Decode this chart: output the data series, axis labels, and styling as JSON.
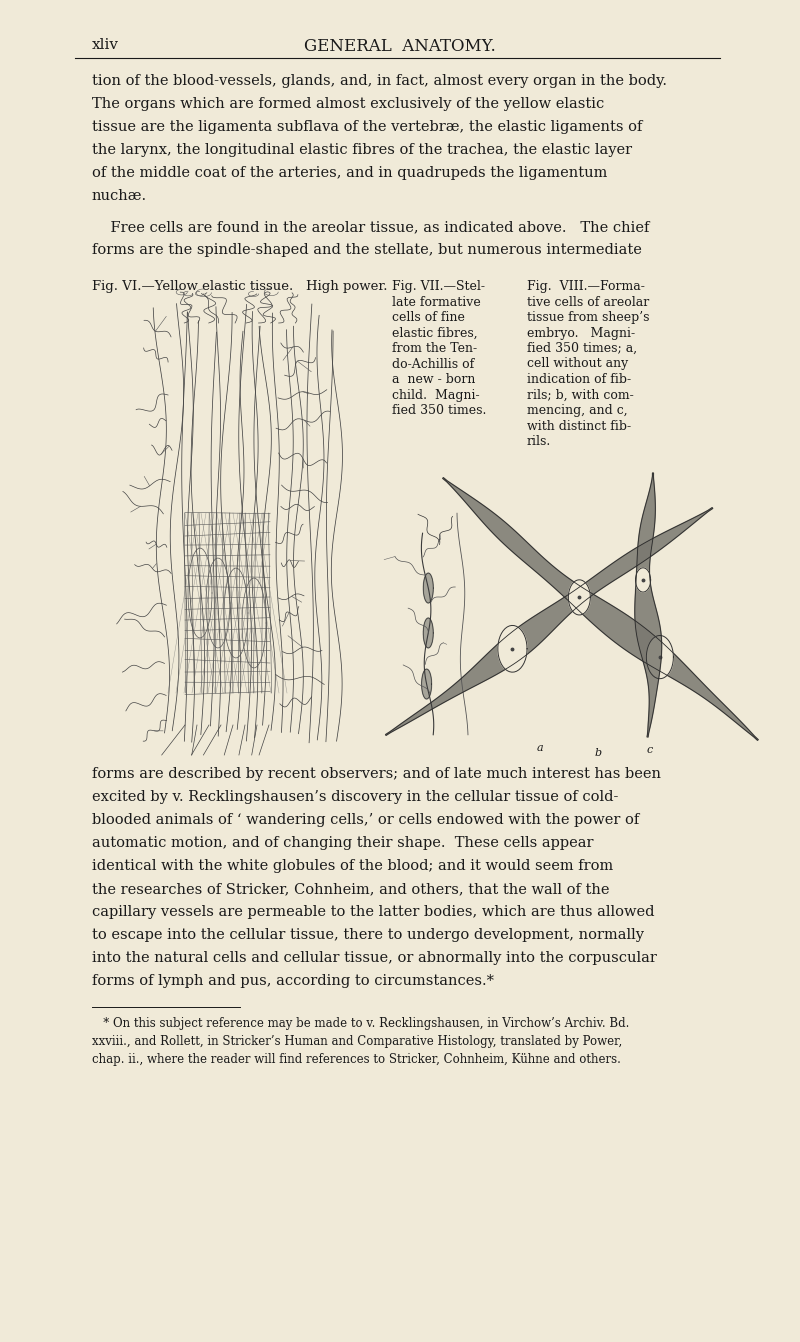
{
  "background_color": "#f0ead8",
  "page_width": 8.0,
  "page_height": 13.42,
  "dpi": 100,
  "text_color": "#1a1a1a",
  "header_left": "xliv",
  "header_center": "GENERAL  ANATOMY.",
  "para1_lines": [
    "tion of the blood-vessels, glands, and, in fact, almost every organ in the body.",
    "The organs which are formed almost exclusively of the yellow elastic",
    "tissue are the ligamenta subflava of the vertebræ, the elastic ligaments of",
    "the larynx, the longitudinal elastic fibres of the trachea, the elastic layer",
    "of the middle coat of the arteries, and in quadrupeds the ligamentum",
    "nuchæ."
  ],
  "para2_lines": [
    "    Free cells are found in the areolar tissue, as indicated above.   The chief",
    "forms are the spindle-shaped and the stellate, but numerous intermediate"
  ],
  "fig_vi_caption": "Fig. VI.—Yellow elastic tissue.   High power.",
  "fig_vii_lines": [
    "Fig. VII.—Stel-",
    "late formative",
    "cells of fine",
    "elastic fibres,",
    "from the Ten-",
    "do-Achillis of",
    "a  new - born",
    "child.  Magni-",
    "fied 350 times."
  ],
  "fig_viii_lines": [
    "Fig.  VIII.—Forma-",
    "tive cells of areolar",
    "tissue from sheep’s",
    "embryo.   Magni-",
    "fied 350 times; a,",
    "cell without any",
    "indication of fib-",
    "rils; b, with com-",
    "mencing, and c,",
    "with distinct fib-",
    "rils."
  ],
  "para3_lines": [
    "forms are described by recent observers; and of late much interest has been",
    "excited by v. Recklingshausen’s discovery in the cellular tissue of cold-",
    "blooded animals of ‘ wandering cells,’ or cells endowed with the power of",
    "automatic motion, and of changing their shape.  These cells appear",
    "identical with the white globules of the blood; and it would seem from",
    "the researches of Stricker, Cohnheim, and others, that the wall of the",
    "capillary vessels are permeable to the latter bodies, which are thus allowed",
    "to escape into the cellular tissue, there to undergo development, normally",
    "into the natural cells and cellular tissue, or abnormally into the corpuscular",
    "forms of lymph and pus, according to circumstances.*"
  ],
  "footnote_lines": [
    "   * On this subject reference may be made to v. Recklingshausen, in Virchow’s Archiv. Bd.",
    "xxviii., and Rollett, in Stricker’s Human and Comparative Histology, translated by Power,",
    "chap. ii., where the reader will find references to Stricker, Cohnheim, Kühne and others."
  ],
  "cell_color": "#7a7a6a",
  "cell_color2": "#8a8878",
  "nucleus_color": "#f0ead8",
  "line_color": "#333333"
}
